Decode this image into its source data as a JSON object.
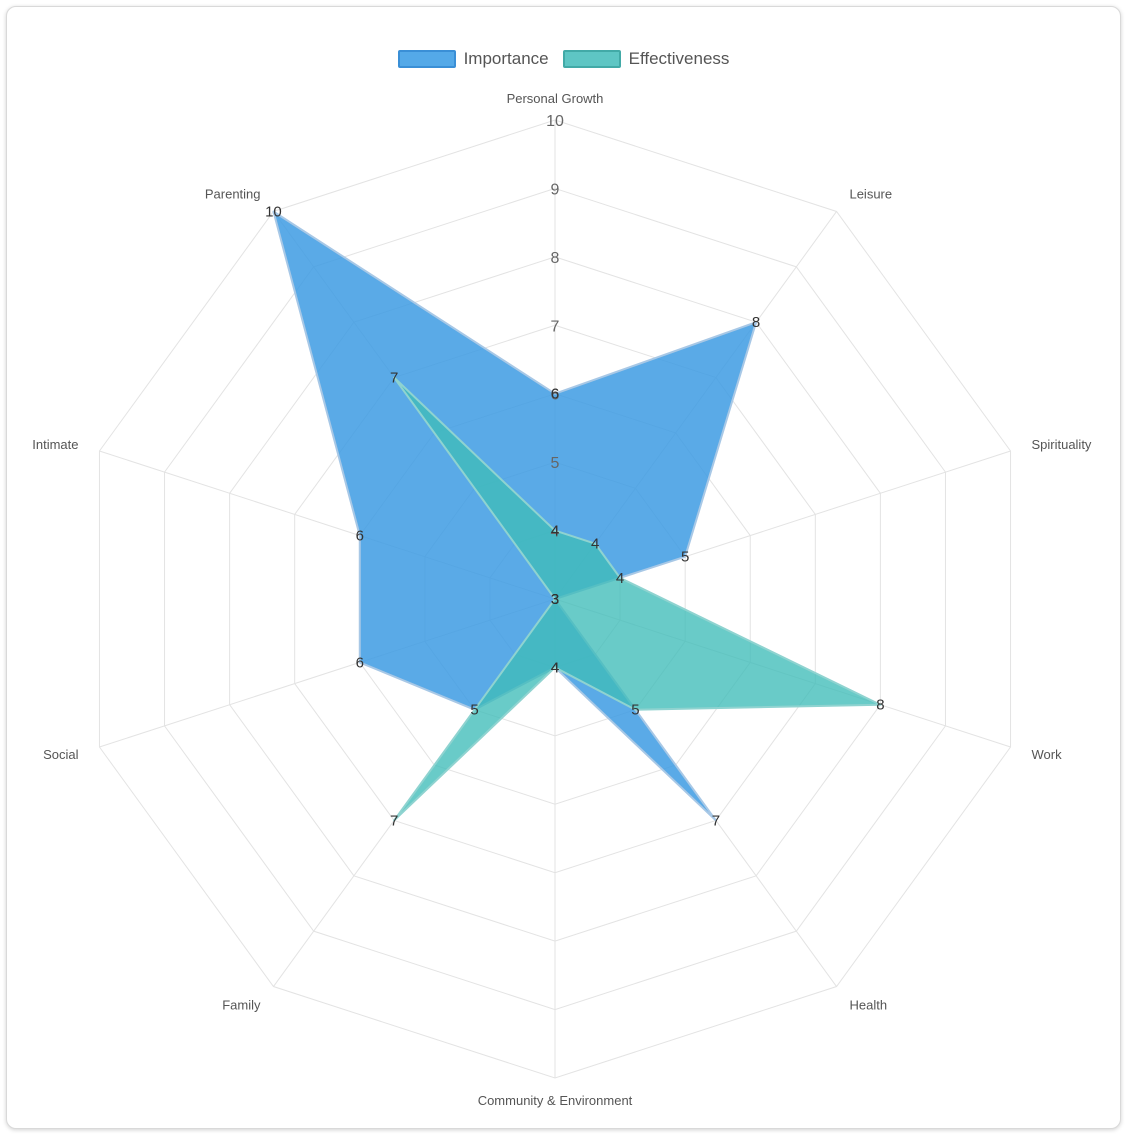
{
  "legend": {
    "items": [
      {
        "label": "Importance",
        "fill": "#54a9e8",
        "border": "#3a8fd6"
      },
      {
        "label": "Effectiveness",
        "fill": "#5ec6c4",
        "border": "#42aaa7"
      }
    ]
  },
  "chart_data": {
    "type": "radar",
    "categories": [
      "Personal Growth",
      "Leisure",
      "Spirituality",
      "Work",
      "Health",
      "Community & Environment",
      "Family",
      "Social",
      "Intimate",
      "Parenting"
    ],
    "series": [
      {
        "name": "Importance",
        "values": [
          6,
          8,
          5,
          3,
          7,
          4,
          5,
          6,
          6,
          10
        ],
        "color": "#3d9be3"
      },
      {
        "name": "Effectiveness",
        "values": [
          4,
          4,
          4,
          8,
          5,
          4,
          7,
          3,
          3,
          7
        ],
        "color": "#3fbdb9"
      }
    ],
    "rlim": [
      3,
      10
    ],
    "ticks": [
      "4",
      "5",
      "6",
      "7",
      "8",
      "9",
      "10"
    ],
    "grid": true,
    "legend_position": "top"
  }
}
